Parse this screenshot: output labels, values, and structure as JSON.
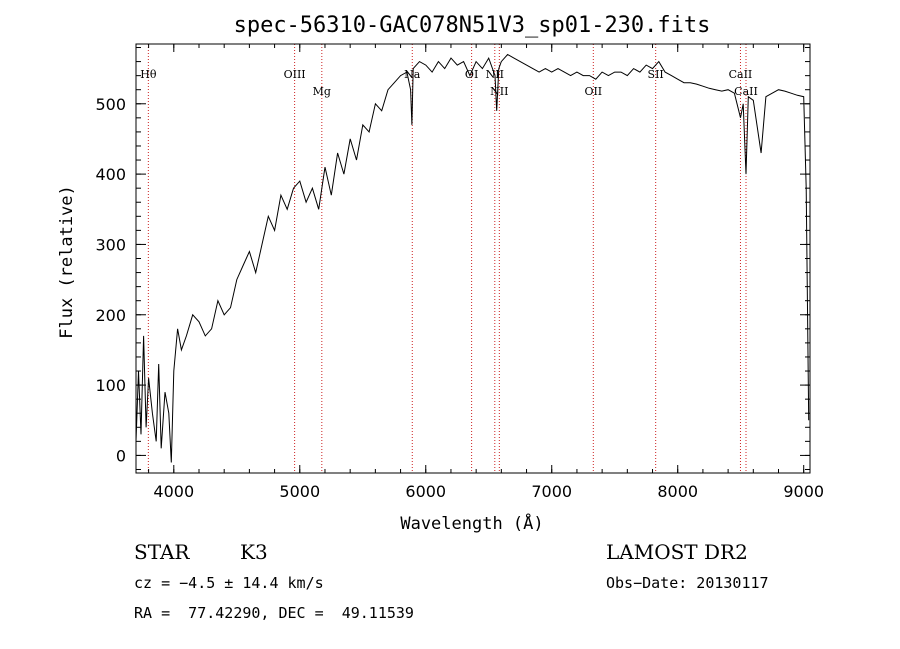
{
  "chart_data": {
    "type": "line",
    "title": "spec-56310-GAC078N51V3_sp01-230.fits",
    "xlabel": "Wavelength (Å)",
    "ylabel": "Flux (relative)",
    "xlim": [
      3700,
      9050
    ],
    "ylim": [
      -25,
      585
    ],
    "xticks": [
      4000,
      5000,
      6000,
      7000,
      8000,
      9000
    ],
    "yticks": [
      0,
      100,
      200,
      300,
      400,
      500
    ],
    "grid": false,
    "series": [
      {
        "x": [
          3700,
          3720,
          3740,
          3760,
          3780,
          3800,
          3830,
          3860,
          3880,
          3900,
          3930,
          3960,
          3980,
          4000,
          4030,
          4060,
          4100,
          4150,
          4200,
          4250,
          4300,
          4350,
          4400,
          4450,
          4500,
          4550,
          4600,
          4650,
          4700,
          4750,
          4800,
          4850,
          4900,
          4950,
          5000,
          5050,
          5100,
          5150,
          5200,
          5250,
          5300,
          5350,
          5400,
          5450,
          5500,
          5550,
          5600,
          5650,
          5700,
          5750,
          5800,
          5850,
          5880,
          5890,
          5900,
          5950,
          6000,
          6050,
          6100,
          6150,
          6200,
          6250,
          6300,
          6350,
          6400,
          6450,
          6500,
          6550,
          6563,
          6580,
          6600,
          6650,
          6700,
          6750,
          6800,
          6850,
          6900,
          6950,
          7000,
          7050,
          7100,
          7150,
          7200,
          7250,
          7300,
          7350,
          7400,
          7450,
          7500,
          7550,
          7600,
          7650,
          7700,
          7750,
          7800,
          7850,
          7900,
          7950,
          8000,
          8050,
          8100,
          8150,
          8200,
          8250,
          8300,
          8350,
          8400,
          8450,
          8498,
          8520,
          8542,
          8560,
          8600,
          8662,
          8700,
          8750,
          8800,
          8850,
          8900,
          8950,
          9000,
          9020,
          9040
        ],
        "values": [
          20,
          120,
          30,
          170,
          40,
          110,
          60,
          20,
          130,
          10,
          90,
          60,
          -10,
          120,
          180,
          150,
          170,
          200,
          190,
          170,
          180,
          220,
          200,
          210,
          250,
          270,
          290,
          260,
          300,
          340,
          320,
          370,
          350,
          380,
          390,
          360,
          380,
          350,
          410,
          370,
          430,
          400,
          450,
          420,
          470,
          460,
          500,
          490,
          520,
          530,
          540,
          545,
          520,
          470,
          550,
          560,
          555,
          545,
          560,
          550,
          565,
          555,
          560,
          540,
          560,
          550,
          565,
          540,
          490,
          550,
          560,
          570,
          565,
          560,
          555,
          550,
          545,
          550,
          545,
          550,
          545,
          540,
          545,
          540,
          540,
          535,
          545,
          540,
          545,
          545,
          540,
          550,
          545,
          555,
          550,
          560,
          545,
          540,
          535,
          530,
          530,
          528,
          525,
          522,
          520,
          518,
          520,
          515,
          480,
          500,
          400,
          510,
          505,
          430,
          510,
          515,
          520,
          518,
          515,
          512,
          510,
          380,
          50
        ]
      }
    ],
    "lines": [
      {
        "label": "Hθ",
        "x": 3798
      },
      {
        "label": "OIII",
        "x": 4959
      },
      {
        "label": "Mg",
        "x": 5175
      },
      {
        "label": "Na",
        "x": 5893
      },
      {
        "label": "OI",
        "x": 6364
      },
      {
        "label": "NII",
        "x": 6548
      },
      {
        "label": "NII",
        "x": 6584
      },
      {
        "label": "OII",
        "x": 7330
      },
      {
        "label": "SII",
        "x": 7825
      },
      {
        "label": "CaII",
        "x": 8498
      },
      {
        "label": "CaII",
        "x": 8542
      }
    ]
  },
  "info": {
    "class": "STAR",
    "subclass": "K3",
    "survey": "LAMOST DR2",
    "cz": "cz = −4.5 ± 14.4 km/s",
    "obs_date": "Obs−Date: 20130117",
    "coords": "RA =  77.42290, DEC =  49.11539"
  }
}
